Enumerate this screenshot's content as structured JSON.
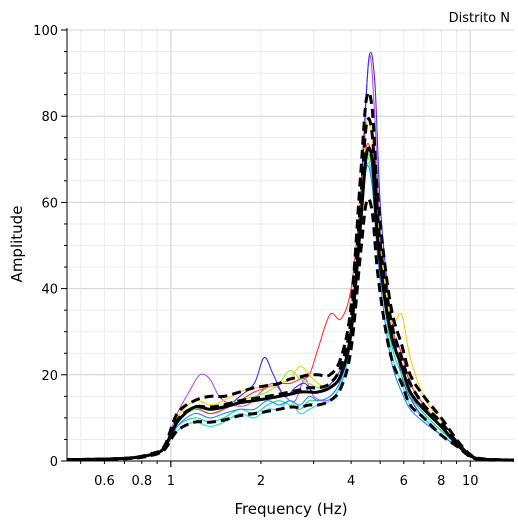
{
  "chart_data": {
    "type": "line",
    "title": "Distrito N",
    "xlabel": "Frequency (Hz)",
    "ylabel": "Amplitude",
    "x_scale": "log",
    "xlim": [
      0.45,
      14
    ],
    "ylim": [
      0,
      100
    ],
    "x_ticks": [
      {
        "value": 0.6,
        "label": "0.6"
      },
      {
        "value": 0.8,
        "label": "0.8"
      },
      {
        "value": 1,
        "label": "1"
      },
      {
        "value": 2,
        "label": "2"
      },
      {
        "value": 4,
        "label": "4"
      },
      {
        "value": 6,
        "label": "6"
      },
      {
        "value": 8,
        "label": "8"
      },
      {
        "value": 10,
        "label": "10"
      }
    ],
    "y_ticks": [
      {
        "value": 0,
        "label": "0"
      },
      {
        "value": 20,
        "label": "20"
      },
      {
        "value": 40,
        "label": "40"
      },
      {
        "value": 60,
        "label": "60"
      },
      {
        "value": 80,
        "label": "80"
      },
      {
        "value": 100,
        "label": "100"
      }
    ],
    "grid": true,
    "series": [
      {
        "color": "#cc44ee",
        "style": "solid",
        "x": [
          0.45,
          0.7,
          0.85,
          0.95,
          1.05,
          1.15,
          1.25,
          1.35,
          1.45,
          1.6,
          1.8,
          2.0,
          2.2,
          2.4,
          2.6,
          2.8,
          3.0,
          3.3,
          3.6,
          3.9,
          4.2,
          4.4,
          4.6,
          4.8,
          5.0,
          5.3,
          5.6,
          6.0,
          6.5,
          7.0,
          8.0,
          9.0,
          10.0,
          11.0,
          14.0
        ],
        "y": [
          0.3,
          0.6,
          1.5,
          3.5,
          11,
          16,
          20,
          19,
          15,
          13,
          13,
          16,
          18,
          15,
          14,
          19,
          15,
          14,
          16,
          24,
          45,
          72,
          94,
          80,
          52,
          34,
          27,
          20,
          14,
          11,
          7,
          4,
          1.2,
          0.4,
          0.2
        ]
      },
      {
        "color": "#3333ee",
        "style": "solid",
        "x": [
          0.45,
          0.7,
          0.85,
          0.95,
          1.05,
          1.2,
          1.35,
          1.5,
          1.7,
          1.9,
          2.05,
          2.2,
          2.4,
          2.6,
          2.8,
          3.0,
          3.3,
          3.6,
          3.9,
          4.2,
          4.4,
          4.6,
          4.8,
          5.0,
          5.3,
          5.6,
          6.0,
          6.5,
          7.0,
          8.0,
          9.0,
          10.0,
          11.0,
          14.0
        ],
        "y": [
          0.3,
          0.6,
          1.5,
          3.3,
          9,
          12,
          11,
          12,
          15,
          18,
          24,
          20,
          15,
          17,
          18,
          16,
          17,
          20,
          26,
          48,
          74,
          94,
          88,
          60,
          40,
          28,
          18,
          13,
          10,
          6,
          3.5,
          1,
          0.4,
          0.2
        ]
      },
      {
        "color": "#ff3333",
        "style": "solid",
        "x": [
          0.45,
          0.7,
          0.85,
          0.95,
          1.05,
          1.2,
          1.35,
          1.5,
          1.7,
          1.9,
          2.1,
          2.3,
          2.5,
          2.7,
          2.9,
          3.1,
          3.4,
          3.7,
          4.0,
          4.3,
          4.5,
          4.7,
          4.9,
          5.2,
          5.5,
          5.9,
          6.3,
          7.0,
          8.0,
          9.0,
          10.0,
          11.0,
          14.0
        ],
        "y": [
          0.3,
          0.6,
          1.4,
          3.0,
          9,
          12,
          11,
          12,
          14,
          16,
          17,
          18,
          18,
          19,
          20,
          26,
          34,
          33,
          40,
          60,
          73,
          70,
          55,
          38,
          30,
          25,
          18,
          13,
          8,
          4,
          1.2,
          0.4,
          0.2
        ]
      },
      {
        "color": "#ffcc00",
        "style": "solid",
        "x": [
          0.45,
          0.7,
          0.85,
          0.95,
          1.05,
          1.2,
          1.35,
          1.5,
          1.7,
          1.9,
          2.1,
          2.3,
          2.5,
          2.7,
          2.9,
          3.1,
          3.4,
          3.7,
          4.0,
          4.3,
          4.5,
          4.7,
          4.9,
          5.2,
          5.5,
          5.9,
          6.3,
          7.0,
          8.0,
          9.0,
          10.0,
          11.0,
          14.0
        ],
        "y": [
          0.3,
          0.6,
          1.4,
          3.0,
          10,
          14,
          13,
          14,
          16,
          17,
          17,
          18,
          19,
          22,
          20,
          18,
          17,
          20,
          30,
          55,
          78,
          75,
          56,
          40,
          32,
          34,
          24,
          15,
          9,
          4.5,
          1.2,
          0.4,
          0.2
        ]
      },
      {
        "color": "#88ee22",
        "style": "solid",
        "x": [
          0.45,
          0.7,
          0.85,
          0.95,
          1.05,
          1.2,
          1.35,
          1.5,
          1.7,
          1.9,
          2.1,
          2.3,
          2.5,
          2.7,
          2.9,
          3.1,
          3.4,
          3.7,
          4.0,
          4.3,
          4.5,
          4.7,
          4.9,
          5.2,
          5.5,
          5.9,
          6.3,
          7.0,
          8.0,
          9.0,
          10.0,
          11.0,
          14.0
        ],
        "y": [
          0.3,
          0.6,
          1.4,
          3.0,
          9,
          12,
          12,
          13,
          14,
          15,
          16,
          18,
          21,
          19,
          18,
          17,
          17,
          20,
          30,
          56,
          70,
          66,
          52,
          38,
          28,
          22,
          16,
          12,
          8,
          4,
          1.2,
          0.4,
          0.2
        ]
      },
      {
        "color": "#22ddee",
        "style": "solid",
        "x": [
          0.45,
          0.7,
          0.85,
          0.95,
          1.05,
          1.2,
          1.35,
          1.5,
          1.7,
          1.9,
          2.1,
          2.3,
          2.5,
          2.7,
          2.9,
          3.1,
          3.4,
          3.7,
          4.0,
          4.3,
          4.5,
          4.7,
          4.9,
          5.2,
          5.5,
          5.9,
          6.3,
          7.0,
          8.0,
          9.0,
          10.0,
          11.0,
          14.0
        ],
        "y": [
          0.3,
          0.6,
          1.3,
          2.8,
          7,
          9,
          8,
          9,
          11,
          10,
          12,
          12,
          14,
          11,
          12,
          13,
          14,
          18,
          28,
          52,
          68,
          66,
          50,
          35,
          24,
          18,
          13,
          10,
          6,
          3.5,
          1,
          0.4,
          0.2
        ]
      },
      {
        "color": "#11dd88",
        "style": "solid",
        "x": [
          0.45,
          0.7,
          0.85,
          0.95,
          1.05,
          1.2,
          1.35,
          1.5,
          1.7,
          1.9,
          2.1,
          2.3,
          2.5,
          2.7,
          2.9,
          3.1,
          3.4,
          3.7,
          4.0,
          4.3,
          4.5,
          4.7,
          4.9,
          5.2,
          5.5,
          5.9,
          6.3,
          7.0,
          8.0,
          9.0,
          10.0,
          11.0,
          14.0
        ],
        "y": [
          0.3,
          0.6,
          1.3,
          2.8,
          8,
          10,
          9,
          10,
          12,
          11,
          13,
          14,
          13,
          12,
          14,
          14,
          15,
          19,
          30,
          55,
          70,
          68,
          52,
          36,
          26,
          20,
          15,
          11,
          7,
          4,
          1.2,
          0.4,
          0.2
        ]
      },
      {
        "color": "#2288ff",
        "style": "solid",
        "x": [
          0.45,
          0.7,
          0.85,
          0.95,
          1.05,
          1.2,
          1.35,
          1.5,
          1.7,
          1.9,
          2.1,
          2.3,
          2.5,
          2.7,
          2.9,
          3.1,
          3.4,
          3.7,
          4.0,
          4.3,
          4.5,
          4.7,
          4.9,
          5.2,
          5.5,
          5.9,
          6.3,
          7.0,
          8.0,
          9.0,
          10.0,
          11.0,
          14.0
        ],
        "y": [
          0.3,
          0.6,
          1.3,
          2.8,
          8,
          11,
          10,
          11,
          12,
          12,
          14,
          13,
          14,
          13,
          15,
          14,
          15,
          19,
          29,
          54,
          68,
          64,
          48,
          32,
          22,
          16,
          12,
          9,
          6,
          3.5,
          1,
          0.4,
          0.2
        ]
      },
      {
        "color": "#000000",
        "style": "solid",
        "x": [
          0.45,
          0.7,
          0.85,
          0.95,
          1.05,
          1.2,
          1.35,
          1.5,
          1.7,
          1.9,
          2.1,
          2.3,
          2.5,
          2.7,
          2.9,
          3.1,
          3.4,
          3.7,
          4.0,
          4.3,
          4.5,
          4.7,
          4.9,
          5.2,
          5.5,
          5.9,
          6.3,
          7.0,
          8.0,
          9.0,
          10.0,
          11.0,
          14.0
        ],
        "y": [
          0.3,
          0.6,
          1.4,
          3.0,
          9,
          12.5,
          12,
          12.5,
          13.5,
          14,
          14.5,
          15,
          15.5,
          16,
          16,
          16,
          17,
          20,
          30,
          55,
          71,
          70,
          52,
          37,
          28,
          22,
          16,
          12,
          8,
          4,
          1.2,
          0.4,
          0.2
        ]
      },
      {
        "color": "#000000",
        "style": "dashed",
        "x": [
          0.45,
          0.7,
          0.85,
          0.95,
          1.05,
          1.2,
          1.35,
          1.5,
          1.7,
          1.9,
          2.1,
          2.3,
          2.5,
          2.7,
          2.9,
          3.1,
          3.4,
          3.7,
          4.0,
          4.3,
          4.5,
          4.7,
          4.9,
          5.2,
          5.5,
          5.9,
          6.3,
          7.0,
          8.0,
          9.0,
          10.0,
          11.0,
          14.0
        ],
        "y": [
          0.3,
          0.6,
          1.6,
          3.4,
          11,
          14,
          15,
          15,
          16,
          17,
          17.5,
          18,
          19,
          19.5,
          20,
          20,
          20,
          24,
          36,
          66,
          84,
          82,
          62,
          45,
          34,
          27,
          20,
          15,
          10,
          5,
          1.5,
          0.5,
          0.2
        ]
      },
      {
        "color": "#000000",
        "style": "dashed",
        "x": [
          0.45,
          0.7,
          0.85,
          0.95,
          1.05,
          1.2,
          1.35,
          1.5,
          1.7,
          1.9,
          2.1,
          2.3,
          2.5,
          2.7,
          2.9,
          3.1,
          3.4,
          3.7,
          4.0,
          4.3,
          4.5,
          4.7,
          4.9,
          5.2,
          5.5,
          5.9,
          6.3,
          7.0,
          8.0,
          9.0,
          10.0,
          11.0,
          14.0
        ],
        "y": [
          0.3,
          0.6,
          1.4,
          3.0,
          9.5,
          12.5,
          12.5,
          13,
          14,
          14.5,
          15,
          15.5,
          16,
          16.5,
          17,
          17,
          18,
          22,
          33,
          60,
          78,
          76,
          57,
          41,
          31,
          24,
          18,
          13,
          9,
          4.5,
          1.3,
          0.4,
          0.2
        ]
      },
      {
        "color": "#000000",
        "style": "dashed",
        "x": [
          0.45,
          0.7,
          0.85,
          0.95,
          1.05,
          1.2,
          1.35,
          1.5,
          1.7,
          1.9,
          2.1,
          2.3,
          2.5,
          2.7,
          2.9,
          3.1,
          3.4,
          3.7,
          4.0,
          4.3,
          4.5,
          4.7,
          4.9,
          5.2,
          5.5,
          5.9,
          6.3,
          7.0,
          8.0,
          9.0,
          10.0,
          11.0,
          14.0
        ],
        "y": [
          0.3,
          0.5,
          1.2,
          2.6,
          7,
          9,
          9,
          9.5,
          10.5,
          11,
          11.5,
          12,
          12.5,
          12.5,
          13,
          13,
          14,
          17,
          26,
          48,
          60,
          58,
          44,
          31,
          23,
          18,
          13,
          10,
          6,
          3.5,
          1,
          0.3,
          0.2
        ]
      }
    ]
  }
}
